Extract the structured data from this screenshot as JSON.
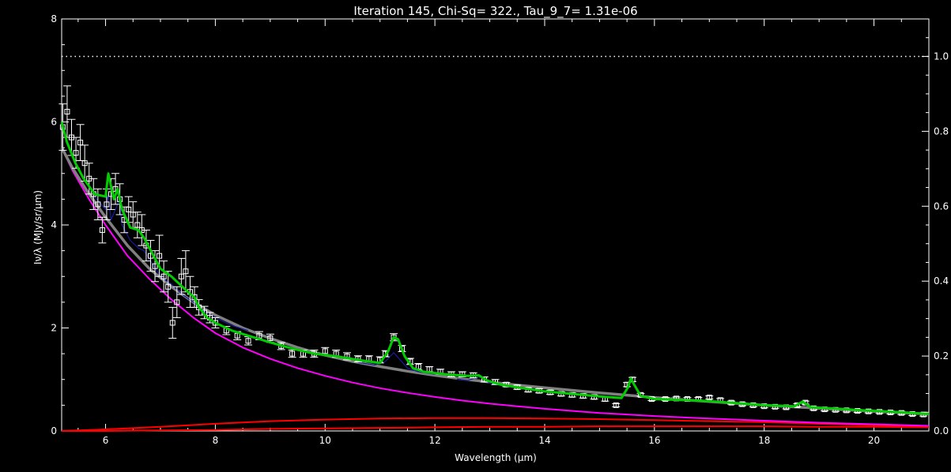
{
  "chart_data": {
    "type": "line",
    "title": "Iteration 145, Chi-Sq=     322., Tau_9_7= 1.31e-06",
    "xlabel": "Wavelength (μm)",
    "ylabel": "Iν/λ (MJy/sr/μm)",
    "xlim": [
      5.2,
      21.0
    ],
    "ylim": [
      0,
      8
    ],
    "y2lim": [
      0,
      1.1
    ],
    "x_ticks": [
      "6",
      "8",
      "10",
      "12",
      "14",
      "16",
      "18",
      "20"
    ],
    "y_ticks": [
      "0",
      "2",
      "4",
      "6",
      "8"
    ],
    "y2_ticks": [
      "0.0",
      "0.2",
      "0.4",
      "0.6",
      "0.8",
      "1.0"
    ],
    "extinction_level": 1.0,
    "colors": {
      "data": "#ffffff",
      "total_fit": "#00cc00",
      "continuum": "#808080",
      "stellar": "#ff00ff",
      "dust_components": "#ff0000",
      "pah_features": "#1a1aa0"
    },
    "observed": [
      [
        5.22,
        5.9,
        0.45
      ],
      [
        5.3,
        6.2,
        0.5
      ],
      [
        5.38,
        5.7,
        0.35
      ],
      [
        5.46,
        5.4,
        0.3
      ],
      [
        5.54,
        5.6,
        0.35
      ],
      [
        5.62,
        5.2,
        0.35
      ],
      [
        5.7,
        4.9,
        0.3
      ],
      [
        5.78,
        4.6,
        0.3
      ],
      [
        5.86,
        4.4,
        0.3
      ],
      [
        5.94,
        3.9,
        0.25
      ],
      [
        6.02,
        4.4,
        0.3
      ],
      [
        6.1,
        4.6,
        0.3
      ],
      [
        6.18,
        4.7,
        0.3
      ],
      [
        6.26,
        4.5,
        0.3
      ],
      [
        6.34,
        4.1,
        0.25
      ],
      [
        6.42,
        4.3,
        0.25
      ],
      [
        6.5,
        4.2,
        0.25
      ],
      [
        6.58,
        4.0,
        0.25
      ],
      [
        6.66,
        3.9,
        0.3
      ],
      [
        6.74,
        3.6,
        0.3
      ],
      [
        6.82,
        3.4,
        0.3
      ],
      [
        6.9,
        3.2,
        0.3
      ],
      [
        6.98,
        3.4,
        0.4
      ],
      [
        7.06,
        3.0,
        0.3
      ],
      [
        7.14,
        2.8,
        0.3
      ],
      [
        7.22,
        2.1,
        0.3
      ],
      [
        7.3,
        2.5,
        0.3
      ],
      [
        7.38,
        3.0,
        0.35
      ],
      [
        7.46,
        3.1,
        0.4
      ],
      [
        7.54,
        2.7,
        0.3
      ],
      [
        7.62,
        2.6,
        0.2
      ],
      [
        7.7,
        2.4,
        0.15
      ],
      [
        7.8,
        2.3,
        0.12
      ],
      [
        7.9,
        2.2,
        0.1
      ],
      [
        8.0,
        2.1,
        0.1
      ],
      [
        8.2,
        1.95,
        0.08
      ],
      [
        8.4,
        1.85,
        0.08
      ],
      [
        8.6,
        1.75,
        0.08
      ],
      [
        8.8,
        1.85,
        0.08
      ],
      [
        9.0,
        1.8,
        0.08
      ],
      [
        9.2,
        1.65,
        0.07
      ],
      [
        9.4,
        1.5,
        0.07
      ],
      [
        9.6,
        1.5,
        0.07
      ],
      [
        9.8,
        1.5,
        0.07
      ],
      [
        10.0,
        1.55,
        0.07
      ],
      [
        10.2,
        1.5,
        0.07
      ],
      [
        10.4,
        1.45,
        0.07
      ],
      [
        10.6,
        1.4,
        0.06
      ],
      [
        10.8,
        1.4,
        0.06
      ],
      [
        11.0,
        1.38,
        0.06
      ],
      [
        11.1,
        1.5,
        0.06
      ],
      [
        11.25,
        1.82,
        0.07
      ],
      [
        11.4,
        1.6,
        0.06
      ],
      [
        11.55,
        1.35,
        0.06
      ],
      [
        11.7,
        1.25,
        0.06
      ],
      [
        11.9,
        1.2,
        0.05
      ],
      [
        12.1,
        1.15,
        0.05
      ],
      [
        12.3,
        1.1,
        0.05
      ],
      [
        12.5,
        1.1,
        0.05
      ],
      [
        12.7,
        1.08,
        0.05
      ],
      [
        12.9,
        1.0,
        0.05
      ],
      [
        13.1,
        0.95,
        0.05
      ],
      [
        13.3,
        0.9,
        0.04
      ],
      [
        13.5,
        0.85,
        0.04
      ],
      [
        13.7,
        0.8,
        0.04
      ],
      [
        13.9,
        0.78,
        0.04
      ],
      [
        14.1,
        0.75,
        0.04
      ],
      [
        14.3,
        0.72,
        0.04
      ],
      [
        14.5,
        0.7,
        0.04
      ],
      [
        14.7,
        0.68,
        0.04
      ],
      [
        14.9,
        0.66,
        0.04
      ],
      [
        15.1,
        0.62,
        0.04
      ],
      [
        15.3,
        0.5,
        0.03
      ],
      [
        15.5,
        0.9,
        0.04
      ],
      [
        15.6,
        1.0,
        0.04
      ],
      [
        15.75,
        0.7,
        0.03
      ],
      [
        15.95,
        0.62,
        0.03
      ],
      [
        16.2,
        0.62,
        0.03
      ],
      [
        16.4,
        0.63,
        0.03
      ],
      [
        16.6,
        0.62,
        0.03
      ],
      [
        16.8,
        0.62,
        0.03
      ],
      [
        17.0,
        0.65,
        0.03
      ],
      [
        17.2,
        0.6,
        0.03
      ],
      [
        17.4,
        0.55,
        0.03
      ],
      [
        17.6,
        0.52,
        0.03
      ],
      [
        17.8,
        0.5,
        0.03
      ],
      [
        18.0,
        0.48,
        0.03
      ],
      [
        18.2,
        0.47,
        0.03
      ],
      [
        18.4,
        0.46,
        0.03
      ],
      [
        18.6,
        0.5,
        0.03
      ],
      [
        18.75,
        0.55,
        0.03
      ],
      [
        18.9,
        0.44,
        0.03
      ],
      [
        19.1,
        0.42,
        0.03
      ],
      [
        19.3,
        0.41,
        0.03
      ],
      [
        19.5,
        0.4,
        0.03
      ],
      [
        19.7,
        0.39,
        0.03
      ],
      [
        19.9,
        0.38,
        0.03
      ],
      [
        20.1,
        0.37,
        0.03
      ],
      [
        20.3,
        0.36,
        0.03
      ],
      [
        20.5,
        0.35,
        0.03
      ],
      [
        20.7,
        0.33,
        0.03
      ],
      [
        20.9,
        0.32,
        0.03
      ]
    ],
    "series": [
      {
        "role": "total_fit",
        "x": [
          5.2,
          5.3,
          5.45,
          5.6,
          5.8,
          6.0,
          6.05,
          6.15,
          6.22,
          6.3,
          6.45,
          6.6,
          6.7,
          6.85,
          7.0,
          7.2,
          7.4,
          7.55,
          7.62,
          7.7,
          7.85,
          8.0,
          8.3,
          8.6,
          9.0,
          9.4,
          9.8,
          10.2,
          10.6,
          11.0,
          11.15,
          11.25,
          11.33,
          11.45,
          11.6,
          11.8,
          12.2,
          12.6,
          12.8,
          12.95,
          13.2,
          13.6,
          14.0,
          14.5,
          15.0,
          15.4,
          15.52,
          15.57,
          15.63,
          15.75,
          16.0,
          16.5,
          17.0,
          17.5,
          18.0,
          18.55,
          18.7,
          18.85,
          19.2,
          19.8,
          20.4,
          21.0
        ],
        "y": [
          6.0,
          5.6,
          5.2,
          4.9,
          4.6,
          4.55,
          5.0,
          4.5,
          4.7,
          4.3,
          3.95,
          3.9,
          3.75,
          3.45,
          3.15,
          3.0,
          2.8,
          2.65,
          2.6,
          2.4,
          2.2,
          2.1,
          1.95,
          1.85,
          1.72,
          1.6,
          1.5,
          1.45,
          1.38,
          1.32,
          1.55,
          1.82,
          1.78,
          1.45,
          1.22,
          1.15,
          1.1,
          1.07,
          1.08,
          0.98,
          0.9,
          0.83,
          0.77,
          0.72,
          0.67,
          0.64,
          0.85,
          1.02,
          0.9,
          0.68,
          0.62,
          0.6,
          0.58,
          0.54,
          0.5,
          0.48,
          0.57,
          0.46,
          0.44,
          0.4,
          0.37,
          0.33
        ]
      },
      {
        "role": "continuum",
        "x": [
          5.2,
          5.4,
          5.7,
          6.0,
          6.4,
          6.8,
          7.2,
          7.6,
          8.0,
          8.5,
          9.0,
          9.5,
          10.0,
          10.5,
          11.0,
          11.5,
          12.0,
          12.5,
          13.0,
          13.5,
          14.0,
          15.0,
          16.0,
          17.0,
          18.0,
          19.0,
          20.0,
          21.0
        ],
        "y": [
          5.5,
          5.1,
          4.6,
          4.15,
          3.6,
          3.15,
          2.8,
          2.5,
          2.25,
          2.0,
          1.8,
          1.62,
          1.47,
          1.35,
          1.25,
          1.16,
          1.08,
          1.01,
          0.95,
          0.89,
          0.84,
          0.74,
          0.65,
          0.57,
          0.5,
          0.44,
          0.38,
          0.33
        ]
      },
      {
        "role": "stellar",
        "x": [
          5.2,
          5.4,
          5.7,
          6.0,
          6.4,
          6.8,
          7.2,
          7.6,
          8.0,
          8.5,
          9.0,
          9.5,
          10.0,
          10.5,
          11.0,
          11.5,
          12.0,
          12.5,
          13.0,
          13.5,
          14.0,
          15.0,
          16.0,
          17.0,
          18.0,
          19.0,
          20.0,
          21.0
        ],
        "y": [
          5.5,
          5.05,
          4.5,
          4.0,
          3.4,
          2.95,
          2.55,
          2.2,
          1.9,
          1.62,
          1.4,
          1.22,
          1.07,
          0.94,
          0.83,
          0.74,
          0.66,
          0.59,
          0.53,
          0.48,
          0.43,
          0.35,
          0.29,
          0.24,
          0.2,
          0.16,
          0.13,
          0.1
        ]
      },
      {
        "role": "dust_components",
        "x": [
          5.2,
          6.0,
          7.0,
          8.0,
          9.0,
          10.0,
          11.0,
          12.0,
          13.0,
          14.0,
          15.0,
          16.0,
          17.0,
          18.0,
          19.0,
          20.0,
          21.0
        ],
        "y": [
          0.0,
          0.03,
          0.08,
          0.14,
          0.19,
          0.22,
          0.24,
          0.25,
          0.25,
          0.24,
          0.23,
          0.21,
          0.19,
          0.17,
          0.14,
          0.11,
          0.08
        ]
      },
      {
        "role": "dust_components",
        "x": [
          5.2,
          6.0,
          7.0,
          8.0,
          9.0,
          10.0,
          11.0,
          12.0,
          13.0,
          14.0,
          15.0,
          16.0,
          17.0,
          18.0,
          19.0,
          20.0,
          21.0
        ],
        "y": [
          0.0,
          0.0,
          0.01,
          0.02,
          0.04,
          0.05,
          0.06,
          0.07,
          0.08,
          0.08,
          0.09,
          0.09,
          0.09,
          0.09,
          0.08,
          0.08,
          0.07
        ]
      },
      {
        "role": "pah_features",
        "x": [
          5.8,
          6.0,
          6.05,
          6.1,
          6.2,
          6.25,
          6.3,
          6.45,
          6.6,
          6.7,
          6.85,
          7.0,
          7.2,
          7.4,
          7.6,
          7.8,
          8.0,
          8.3,
          8.6
        ],
        "y": [
          4.55,
          4.3,
          4.6,
          4.1,
          4.35,
          4.5,
          4.0,
          3.7,
          3.55,
          3.5,
          3.25,
          3.0,
          2.85,
          2.65,
          2.5,
          2.33,
          2.2,
          2.05,
          1.95
        ]
      },
      {
        "role": "pah_features",
        "x": [
          10.6,
          10.9,
          11.1,
          11.25,
          11.35,
          11.5,
          11.7,
          12.0
        ],
        "y": [
          1.33,
          1.28,
          1.35,
          1.52,
          1.4,
          1.22,
          1.15,
          1.1
        ]
      },
      {
        "role": "pah_features",
        "x": [
          12.4,
          12.6,
          12.75,
          12.85,
          12.95,
          13.1,
          13.3
        ],
        "y": [
          1.01,
          0.98,
          1.03,
          1.05,
          0.95,
          0.9,
          0.87
        ]
      }
    ]
  }
}
